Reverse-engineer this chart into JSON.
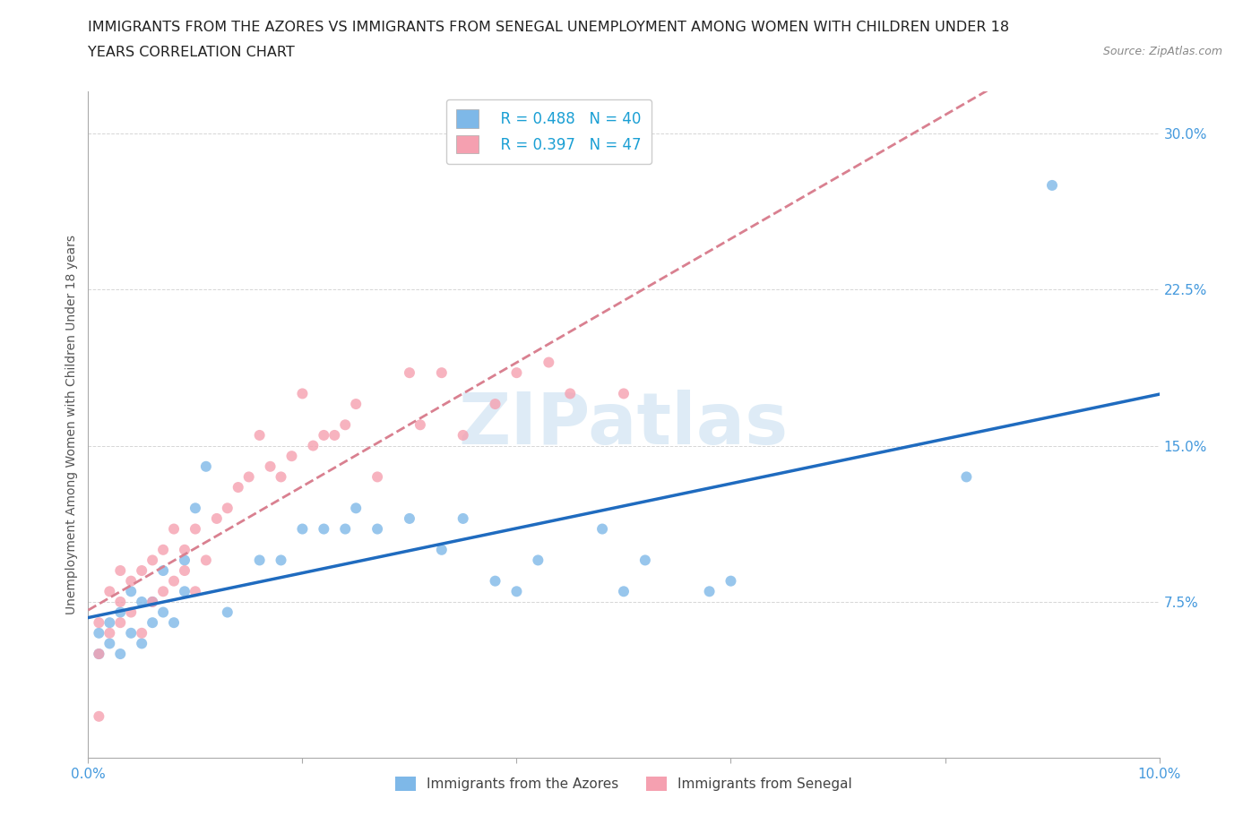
{
  "title_line1": "IMMIGRANTS FROM THE AZORES VS IMMIGRANTS FROM SENEGAL UNEMPLOYMENT AMONG WOMEN WITH CHILDREN UNDER 18",
  "title_line2": "YEARS CORRELATION CHART",
  "source_text": "Source: ZipAtlas.com",
  "ylabel": "Unemployment Among Women with Children Under 18 years",
  "xlim": [
    0.0,
    0.1
  ],
  "ylim": [
    0.0,
    0.32
  ],
  "xtick_vals": [
    0.0,
    0.02,
    0.04,
    0.06,
    0.08,
    0.1
  ],
  "xticklabels": [
    "0.0%",
    "",
    "",
    "",
    "",
    "10.0%"
  ],
  "ytick_vals": [
    0.0,
    0.075,
    0.15,
    0.225,
    0.3
  ],
  "yticklabels": [
    "",
    "7.5%",
    "15.0%",
    "22.5%",
    "30.0%"
  ],
  "legend_r1": "R = 0.488",
  "legend_n1": "N = 40",
  "legend_r2": "R = 0.397",
  "legend_n2": "N = 47",
  "color_azores": "#7eb8e8",
  "color_senegal": "#f5a0b0",
  "color_azores_line": "#1f6bbf",
  "color_senegal_line": "#d98090",
  "watermark": "ZIPatlas",
  "watermark_color": "#c8dff0",
  "tick_color": "#4499dd",
  "grid_color": "#cccccc",
  "background_color": "#ffffff",
  "azores_x": [
    0.001,
    0.001,
    0.002,
    0.002,
    0.003,
    0.003,
    0.004,
    0.004,
    0.005,
    0.005,
    0.006,
    0.006,
    0.007,
    0.007,
    0.008,
    0.009,
    0.009,
    0.01,
    0.011,
    0.013,
    0.016,
    0.018,
    0.02,
    0.022,
    0.024,
    0.025,
    0.027,
    0.03,
    0.033,
    0.035,
    0.038,
    0.04,
    0.042,
    0.048,
    0.05,
    0.052,
    0.058,
    0.06,
    0.082,
    0.09
  ],
  "azores_y": [
    0.05,
    0.06,
    0.055,
    0.065,
    0.05,
    0.07,
    0.06,
    0.08,
    0.055,
    0.075,
    0.065,
    0.075,
    0.07,
    0.09,
    0.065,
    0.08,
    0.095,
    0.12,
    0.14,
    0.07,
    0.095,
    0.095,
    0.11,
    0.11,
    0.11,
    0.12,
    0.11,
    0.115,
    0.1,
    0.115,
    0.085,
    0.08,
    0.095,
    0.11,
    0.08,
    0.095,
    0.08,
    0.085,
    0.135,
    0.275
  ],
  "senegal_x": [
    0.001,
    0.001,
    0.002,
    0.002,
    0.003,
    0.003,
    0.003,
    0.004,
    0.004,
    0.005,
    0.005,
    0.006,
    0.006,
    0.007,
    0.007,
    0.008,
    0.008,
    0.009,
    0.009,
    0.01,
    0.01,
    0.011,
    0.012,
    0.013,
    0.014,
    0.015,
    0.016,
    0.017,
    0.018,
    0.019,
    0.02,
    0.021,
    0.022,
    0.023,
    0.024,
    0.025,
    0.027,
    0.03,
    0.031,
    0.033,
    0.035,
    0.038,
    0.04,
    0.043,
    0.045,
    0.05,
    0.001
  ],
  "senegal_y": [
    0.05,
    0.065,
    0.06,
    0.08,
    0.065,
    0.075,
    0.09,
    0.07,
    0.085,
    0.06,
    0.09,
    0.075,
    0.095,
    0.08,
    0.1,
    0.085,
    0.11,
    0.09,
    0.1,
    0.08,
    0.11,
    0.095,
    0.115,
    0.12,
    0.13,
    0.135,
    0.155,
    0.14,
    0.135,
    0.145,
    0.175,
    0.15,
    0.155,
    0.155,
    0.16,
    0.17,
    0.135,
    0.185,
    0.16,
    0.185,
    0.155,
    0.17,
    0.185,
    0.19,
    0.175,
    0.175,
    0.02
  ]
}
